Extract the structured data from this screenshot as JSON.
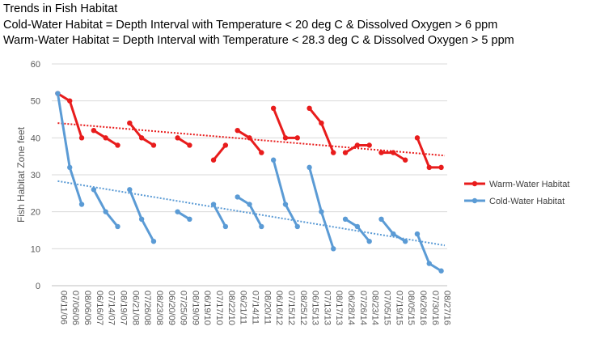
{
  "titles": {
    "line1": "Trends in Fish Habitat",
    "line2": "Cold-Water Habitat =  Depth Interval with Temperature < 20 deg C & Dissolved Oxygen > 6 ppm",
    "line3": "Warm-Water Habitat =  Depth Interval with Temperature < 28.3 deg C & Dissolved Oxygen > 5 ppm"
  },
  "chart_data": {
    "type": "line",
    "title": "Trends in Fish Habitat",
    "xlabel": "",
    "ylabel": "Fish Habitat Zone  feet",
    "ylim": [
      0,
      60
    ],
    "yticks": [
      0,
      10,
      20,
      30,
      40,
      50,
      60
    ],
    "grid": "horizontal",
    "legend_position": "right",
    "categories": [
      "06/11/06",
      "07/06/06",
      "08/06/06",
      "06/16/07",
      "07/14/07",
      "08/19/07",
      "06/21/08",
      "07/26/08",
      "08/23/08",
      "06/20/09",
      "07/25/09",
      "08/19/09",
      "06/19/10",
      "07/17/10",
      "08/22/10",
      "06/21/11",
      "07/14/11",
      "08/20/11",
      "06/16/12",
      "07/15/12",
      "08/25/12",
      "06/15/13",
      "07/13/13",
      "08/17/13",
      "06/28/14",
      "07/26/14",
      "08/23/14",
      "07/05/15",
      "07/19/15",
      "08/05/15",
      "06/26/16",
      "07/30/16",
      "08/27/16"
    ],
    "series": [
      {
        "name": "Warm-Water Habitat",
        "color": "#e81c1c",
        "segments": [
          [
            [
              0,
              52
            ],
            [
              1,
              50
            ],
            [
              2,
              40
            ]
          ],
          [
            [
              3,
              42
            ],
            [
              4,
              40
            ],
            [
              5,
              38
            ]
          ],
          [
            [
              6,
              44
            ],
            [
              7,
              40
            ],
            [
              8,
              38
            ]
          ],
          [
            [
              10,
              40
            ],
            [
              11,
              38
            ]
          ],
          [
            [
              13,
              34
            ],
            [
              14,
              38
            ]
          ],
          [
            [
              15,
              42
            ],
            [
              16,
              40
            ],
            [
              17,
              36
            ]
          ],
          [
            [
              18,
              48
            ],
            [
              19,
              40
            ],
            [
              20,
              40
            ]
          ],
          [
            [
              21,
              48
            ],
            [
              22,
              44
            ],
            [
              23,
              36
            ]
          ],
          [
            [
              24,
              36
            ],
            [
              25,
              38
            ],
            [
              26,
              38
            ]
          ],
          [
            [
              27,
              36
            ],
            [
              28,
              36
            ],
            [
              29,
              34
            ]
          ],
          [
            [
              30,
              40
            ],
            [
              31,
              32
            ],
            [
              32,
              32
            ]
          ]
        ],
        "trendline": [
          44,
          35.2
        ]
      },
      {
        "name": "Cold-Water Habitat",
        "color": "#5b9bd5",
        "segments": [
          [
            [
              0,
              52
            ],
            [
              1,
              32
            ],
            [
              2,
              22
            ]
          ],
          [
            [
              3,
              26
            ],
            [
              4,
              20
            ],
            [
              5,
              16
            ]
          ],
          [
            [
              6,
              26
            ],
            [
              7,
              18
            ],
            [
              8,
              12
            ]
          ],
          [
            [
              10,
              20
            ],
            [
              11,
              18
            ]
          ],
          [
            [
              13,
              22
            ],
            [
              14,
              16
            ]
          ],
          [
            [
              15,
              24
            ],
            [
              16,
              22
            ],
            [
              17,
              16
            ]
          ],
          [
            [
              18,
              34
            ],
            [
              19,
              22
            ],
            [
              20,
              16
            ]
          ],
          [
            [
              21,
              32
            ],
            [
              22,
              20
            ],
            [
              23,
              10
            ]
          ],
          [
            [
              24,
              18
            ],
            [
              25,
              16
            ],
            [
              26,
              12
            ]
          ],
          [
            [
              27,
              18
            ],
            [
              28,
              14
            ],
            [
              29,
              12
            ]
          ],
          [
            [
              30,
              14
            ],
            [
              31,
              6
            ],
            [
              32,
              4
            ]
          ]
        ],
        "trendline": [
          28.3,
          10.9
        ]
      }
    ]
  }
}
